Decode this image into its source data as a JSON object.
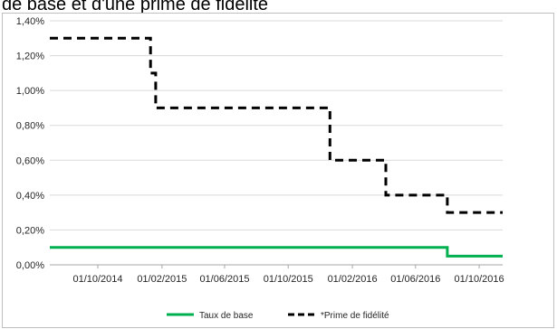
{
  "header": {
    "caption": "de base et d'une prime de fidélité"
  },
  "chart_data": {
    "type": "line",
    "title": "",
    "xlabel": "",
    "ylabel": "",
    "ylim": [
      0,
      1.4
    ],
    "y_ticks": [
      "0,00%",
      "0,20%",
      "0,40%",
      "0,60%",
      "0,80%",
      "1,00%",
      "1,20%",
      "1,40%"
    ],
    "xlim": [
      "2014-07-01",
      "2016-11-15"
    ],
    "x_ticks": [
      {
        "date": "2014-10-01",
        "label": "01/10/2014"
      },
      {
        "date": "2015-02-01",
        "label": "01/02/2015"
      },
      {
        "date": "2015-06-01",
        "label": "01/06/2015"
      },
      {
        "date": "2015-10-01",
        "label": "01/10/2015"
      },
      {
        "date": "2016-02-01",
        "label": "01/02/2016"
      },
      {
        "date": "2016-06-01",
        "label": "01/06/2016"
      },
      {
        "date": "2016-10-01",
        "label": "01/10/2016"
      }
    ],
    "grid": "horizontal",
    "legend_position": "bottom",
    "series": [
      {
        "name": "Taux de base",
        "color": "#00b050",
        "style": "solid",
        "points": [
          {
            "x": "2014-07-01",
            "y": 0.1
          },
          {
            "x": "2016-08-01",
            "y": 0.1
          },
          {
            "x": "2016-08-01",
            "y": 0.05
          },
          {
            "x": "2016-11-15",
            "y": 0.05
          }
        ]
      },
      {
        "name": "*Prime de fidélité",
        "color": "#000000",
        "style": "dashed",
        "points": [
          {
            "x": "2014-07-01",
            "y": 1.3
          },
          {
            "x": "2015-01-10",
            "y": 1.3
          },
          {
            "x": "2015-01-10",
            "y": 1.1
          },
          {
            "x": "2015-01-20",
            "y": 1.1
          },
          {
            "x": "2015-01-20",
            "y": 0.9
          },
          {
            "x": "2015-12-20",
            "y": 0.9
          },
          {
            "x": "2015-12-20",
            "y": 0.6
          },
          {
            "x": "2016-04-05",
            "y": 0.6
          },
          {
            "x": "2016-04-05",
            "y": 0.4
          },
          {
            "x": "2016-08-01",
            "y": 0.4
          },
          {
            "x": "2016-08-01",
            "y": 0.3
          },
          {
            "x": "2016-11-15",
            "y": 0.3
          }
        ]
      }
    ]
  }
}
